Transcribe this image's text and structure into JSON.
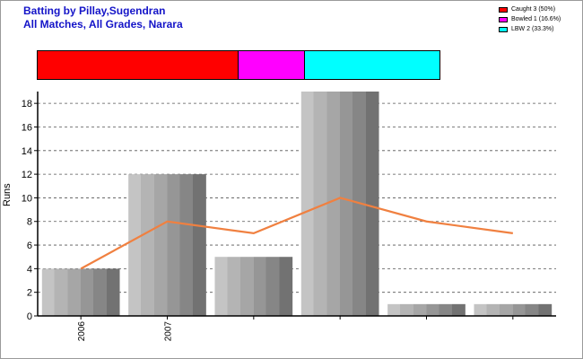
{
  "title_line1": "Batting by Pillay,Sugendran",
  "title_line2": "All Matches, All Grades, Narara",
  "legend": [
    {
      "label": "Caught 3 (50%)",
      "color": "#ff0000"
    },
    {
      "label": "Bowled 1 (16.6%)",
      "color": "#ff00ff"
    },
    {
      "label": "LBW 2 (33.3%)",
      "color": "#00ffff"
    }
  ],
  "dismissal_bar": [
    {
      "name": "Caught",
      "fraction": 0.5,
      "color": "#ff0000"
    },
    {
      "name": "Bowled",
      "fraction": 0.166,
      "color": "#ff00ff"
    },
    {
      "name": "LBW",
      "fraction": 0.333,
      "color": "#00ffff"
    }
  ],
  "chart_data": {
    "type": "bar",
    "categories": [
      "2006",
      "2007",
      "",
      "",
      "",
      ""
    ],
    "values": [
      4,
      12,
      5,
      19,
      1,
      1
    ],
    "line": {
      "values": [
        4,
        8,
        7,
        10,
        8,
        7
      ],
      "color": "#f08040"
    },
    "title": "",
    "xlabel": "",
    "ylabel": "Runs",
    "ylim": [
      0,
      19
    ],
    "yticks": [
      0,
      2,
      4,
      6,
      8,
      10,
      12,
      14,
      16,
      18
    ],
    "grid": true
  }
}
